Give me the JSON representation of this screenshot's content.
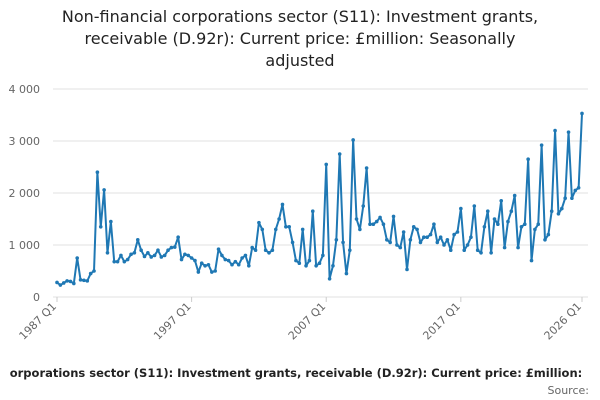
{
  "chart_data": {
    "type": "line",
    "title_lines": [
      "Non-financial corporations sector (S11): Investment grants,",
      "receivable (D.92r): Current price: £million: Seasonally",
      "adjusted"
    ],
    "footer_title": "orporations sector (S11): Investment grants, receivable (D.92r): Current price: £million:",
    "source": "Source:",
    "categories": [
      "1987 Q1",
      null,
      null,
      null,
      null,
      null,
      null,
      null,
      null,
      null,
      null,
      null,
      null,
      null,
      null,
      null,
      null,
      null,
      null,
      null,
      null,
      null,
      null,
      null,
      null,
      null,
      null,
      null,
      null,
      null,
      null,
      null,
      null,
      null,
      null,
      null,
      null,
      null,
      null,
      null,
      "1997 Q1",
      null,
      null,
      null,
      null,
      null,
      null,
      null,
      null,
      null,
      null,
      null,
      null,
      null,
      null,
      null,
      null,
      null,
      null,
      null,
      null,
      null,
      null,
      null,
      null,
      null,
      null,
      null,
      null,
      null,
      null,
      null,
      null,
      null,
      null,
      null,
      null,
      null,
      null,
      null,
      "2007 Q1",
      null,
      null,
      null,
      null,
      null,
      null,
      null,
      null,
      null,
      null,
      null,
      null,
      null,
      null,
      null,
      null,
      null,
      null,
      null,
      null,
      null,
      null,
      null,
      null,
      null,
      null,
      null,
      null,
      null,
      null,
      null,
      null,
      null,
      null,
      null,
      null,
      null,
      null,
      null,
      "2017 Q1",
      null,
      null,
      null,
      null,
      null,
      null,
      null,
      null,
      null,
      null,
      null,
      null,
      null,
      null,
      null,
      null,
      null,
      null,
      null,
      null,
      null,
      null,
      null,
      null,
      null,
      null,
      null,
      null,
      null,
      null,
      null,
      null,
      null,
      null,
      null,
      "2026 Q1"
    ],
    "values": [
      280,
      230,
      270,
      310,
      300,
      260,
      750,
      330,
      320,
      310,
      450,
      500,
      2400,
      1350,
      2060,
      850,
      1450,
      680,
      680,
      800,
      680,
      720,
      820,
      850,
      1100,
      900,
      780,
      850,
      770,
      800,
      900,
      770,
      800,
      900,
      950,
      960,
      1150,
      720,
      820,
      800,
      750,
      700,
      480,
      650,
      600,
      620,
      480,
      500,
      920,
      800,
      720,
      700,
      620,
      680,
      620,
      750,
      800,
      600,
      950,
      900,
      1430,
      1300,
      900,
      850,
      900,
      1300,
      1500,
      1780,
      1350,
      1350,
      1050,
      700,
      650,
      1300,
      600,
      700,
      1650,
      600,
      650,
      800,
      2550,
      350,
      600,
      1100,
      2750,
      1050,
      450,
      900,
      3020,
      1500,
      1300,
      1750,
      2480,
      1400,
      1400,
      1450,
      1530,
      1400,
      1100,
      1050,
      1550,
      1000,
      950,
      1250,
      530,
      1100,
      1350,
      1300,
      1050,
      1150,
      1150,
      1200,
      1400,
      1050,
      1150,
      1000,
      1100,
      900,
      1200,
      1250,
      1700,
      900,
      1000,
      1150,
      1750,
      900,
      850,
      1350,
      1650,
      850,
      1500,
      1400,
      1850,
      950,
      1450,
      1650,
      1950,
      950,
      1350,
      1400,
      2650,
      700,
      1300,
      1400,
      2920,
      1100,
      1200,
      1650,
      3200,
      1600,
      1700,
      1900,
      3170,
      1900,
      2050,
      2100,
      3530
    ],
    "color": "#1f78b4",
    "ylim": [
      0,
      4000
    ],
    "yticks": [
      0,
      {
        "value": 1000,
        "label": "1 000"
      },
      {
        "value": 2000,
        "label": "2 000"
      },
      {
        "value": 3000,
        "label": "3 000"
      },
      {
        "value": 4000,
        "label": "4 000"
      }
    ],
    "grid": true
  }
}
